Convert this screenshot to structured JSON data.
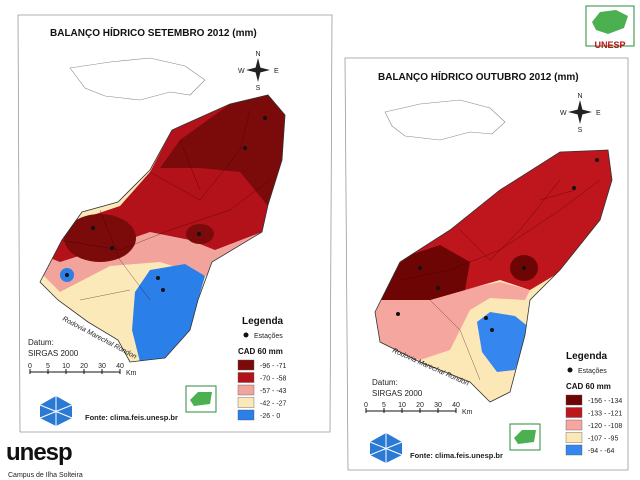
{
  "logo_top": "UNESP",
  "maps": [
    {
      "title": "BALANÇO HÍDRICO SETEMBRO 2012 (mm)",
      "compass": {
        "n": "N",
        "s": "S",
        "e": "E",
        "w": "W"
      },
      "legend_title": "Legenda",
      "stations_label": "Estações",
      "cad": "CAD 60 mm",
      "classes": [
        {
          "label": "-96 - -71",
          "color": "#7b0a0a"
        },
        {
          "label": "-70 - -58",
          "color": "#b3121a"
        },
        {
          "label": "-57 - -43",
          "color": "#f2a39c"
        },
        {
          "label": "-42 - -27",
          "color": "#fce9ba"
        },
        {
          "label": "-26 - 0",
          "color": "#2a7fe8"
        }
      ],
      "datum_label": "Datum:",
      "datum": "SIRGAS 2000",
      "scale_labels": [
        "0",
        "5",
        "10",
        "20",
        "30",
        "40"
      ],
      "scale_unit": "Km",
      "source": "Fonte: clima.feis.unesp.br",
      "road": "Rodovia Marechal Rondon"
    },
    {
      "title": "BALANÇO HÍDRICO OUTUBRO 2012 (mm)",
      "compass": {
        "n": "N",
        "s": "S",
        "e": "E",
        "w": "W"
      },
      "legend_title": "Legenda",
      "stations_label": "Estações",
      "cad": "CAD 60 mm",
      "classes": [
        {
          "label": "-156 - -134",
          "color": "#6e0505"
        },
        {
          "label": "-133 - -121",
          "color": "#bf151c"
        },
        {
          "label": "-120 - -108",
          "color": "#f4a69f"
        },
        {
          "label": "-107 - -95",
          "color": "#fce8b6"
        },
        {
          "label": "-94 - -64",
          "color": "#3586ee"
        }
      ],
      "datum_label": "Datum:",
      "datum": "SIRGAS 2000",
      "scale_labels": [
        "0",
        "5",
        "10",
        "20",
        "30",
        "40"
      ],
      "scale_unit": "Km",
      "source": "Fonte: clima.feis.unesp.br",
      "road": "Rodovia Marechal Rondon"
    }
  ],
  "footer": {
    "brand": "unesp",
    "campus": "Campus de Ilha Solteira"
  }
}
